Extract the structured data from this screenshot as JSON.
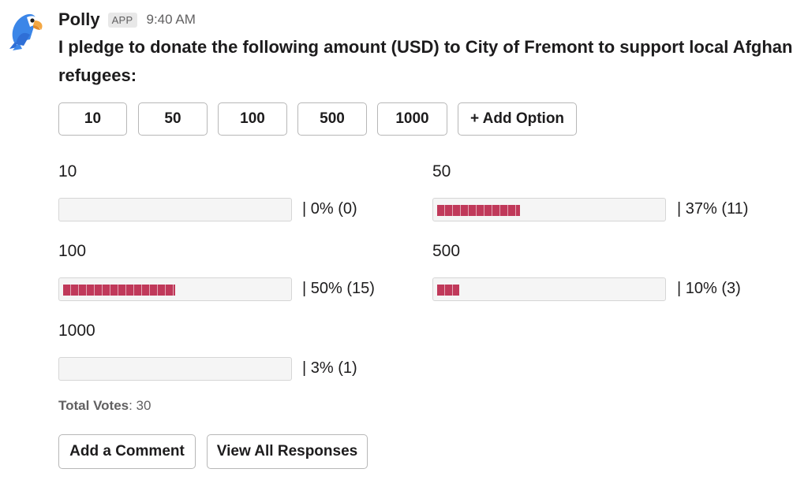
{
  "message": {
    "sender": "Polly",
    "badge": "APP",
    "time": "9:40 AM",
    "question": "I pledge to donate the following amount (USD) to City of Fremont to support local Afghan refugees:"
  },
  "options": [
    {
      "label": "10"
    },
    {
      "label": "50"
    },
    {
      "label": "100"
    },
    {
      "label": "500"
    },
    {
      "label": "1000"
    },
    {
      "label": "+ Add Option"
    }
  ],
  "results": [
    {
      "label": "10",
      "stat": "| 0% (0)",
      "fraction": 0.0
    },
    {
      "label": "50",
      "stat": "| 37% (11)",
      "fraction": 0.37
    },
    {
      "label": "100",
      "stat": "| 50% (15)",
      "fraction": 0.5
    },
    {
      "label": "500",
      "stat": "| 10% (3)",
      "fraction": 0.1
    },
    {
      "label": "1000",
      "stat": "| 3% (1)",
      "fraction": 0.03
    }
  ],
  "total": {
    "label": "Total Votes",
    "value": ": 30"
  },
  "actions": {
    "comment": "Add a Comment",
    "responses": "View All Responses"
  },
  "colors": {
    "bar_fill": "#c0395a",
    "bar_track": "#f5f5f5"
  },
  "icons": {
    "avatar": "parrot-avatar-icon"
  }
}
